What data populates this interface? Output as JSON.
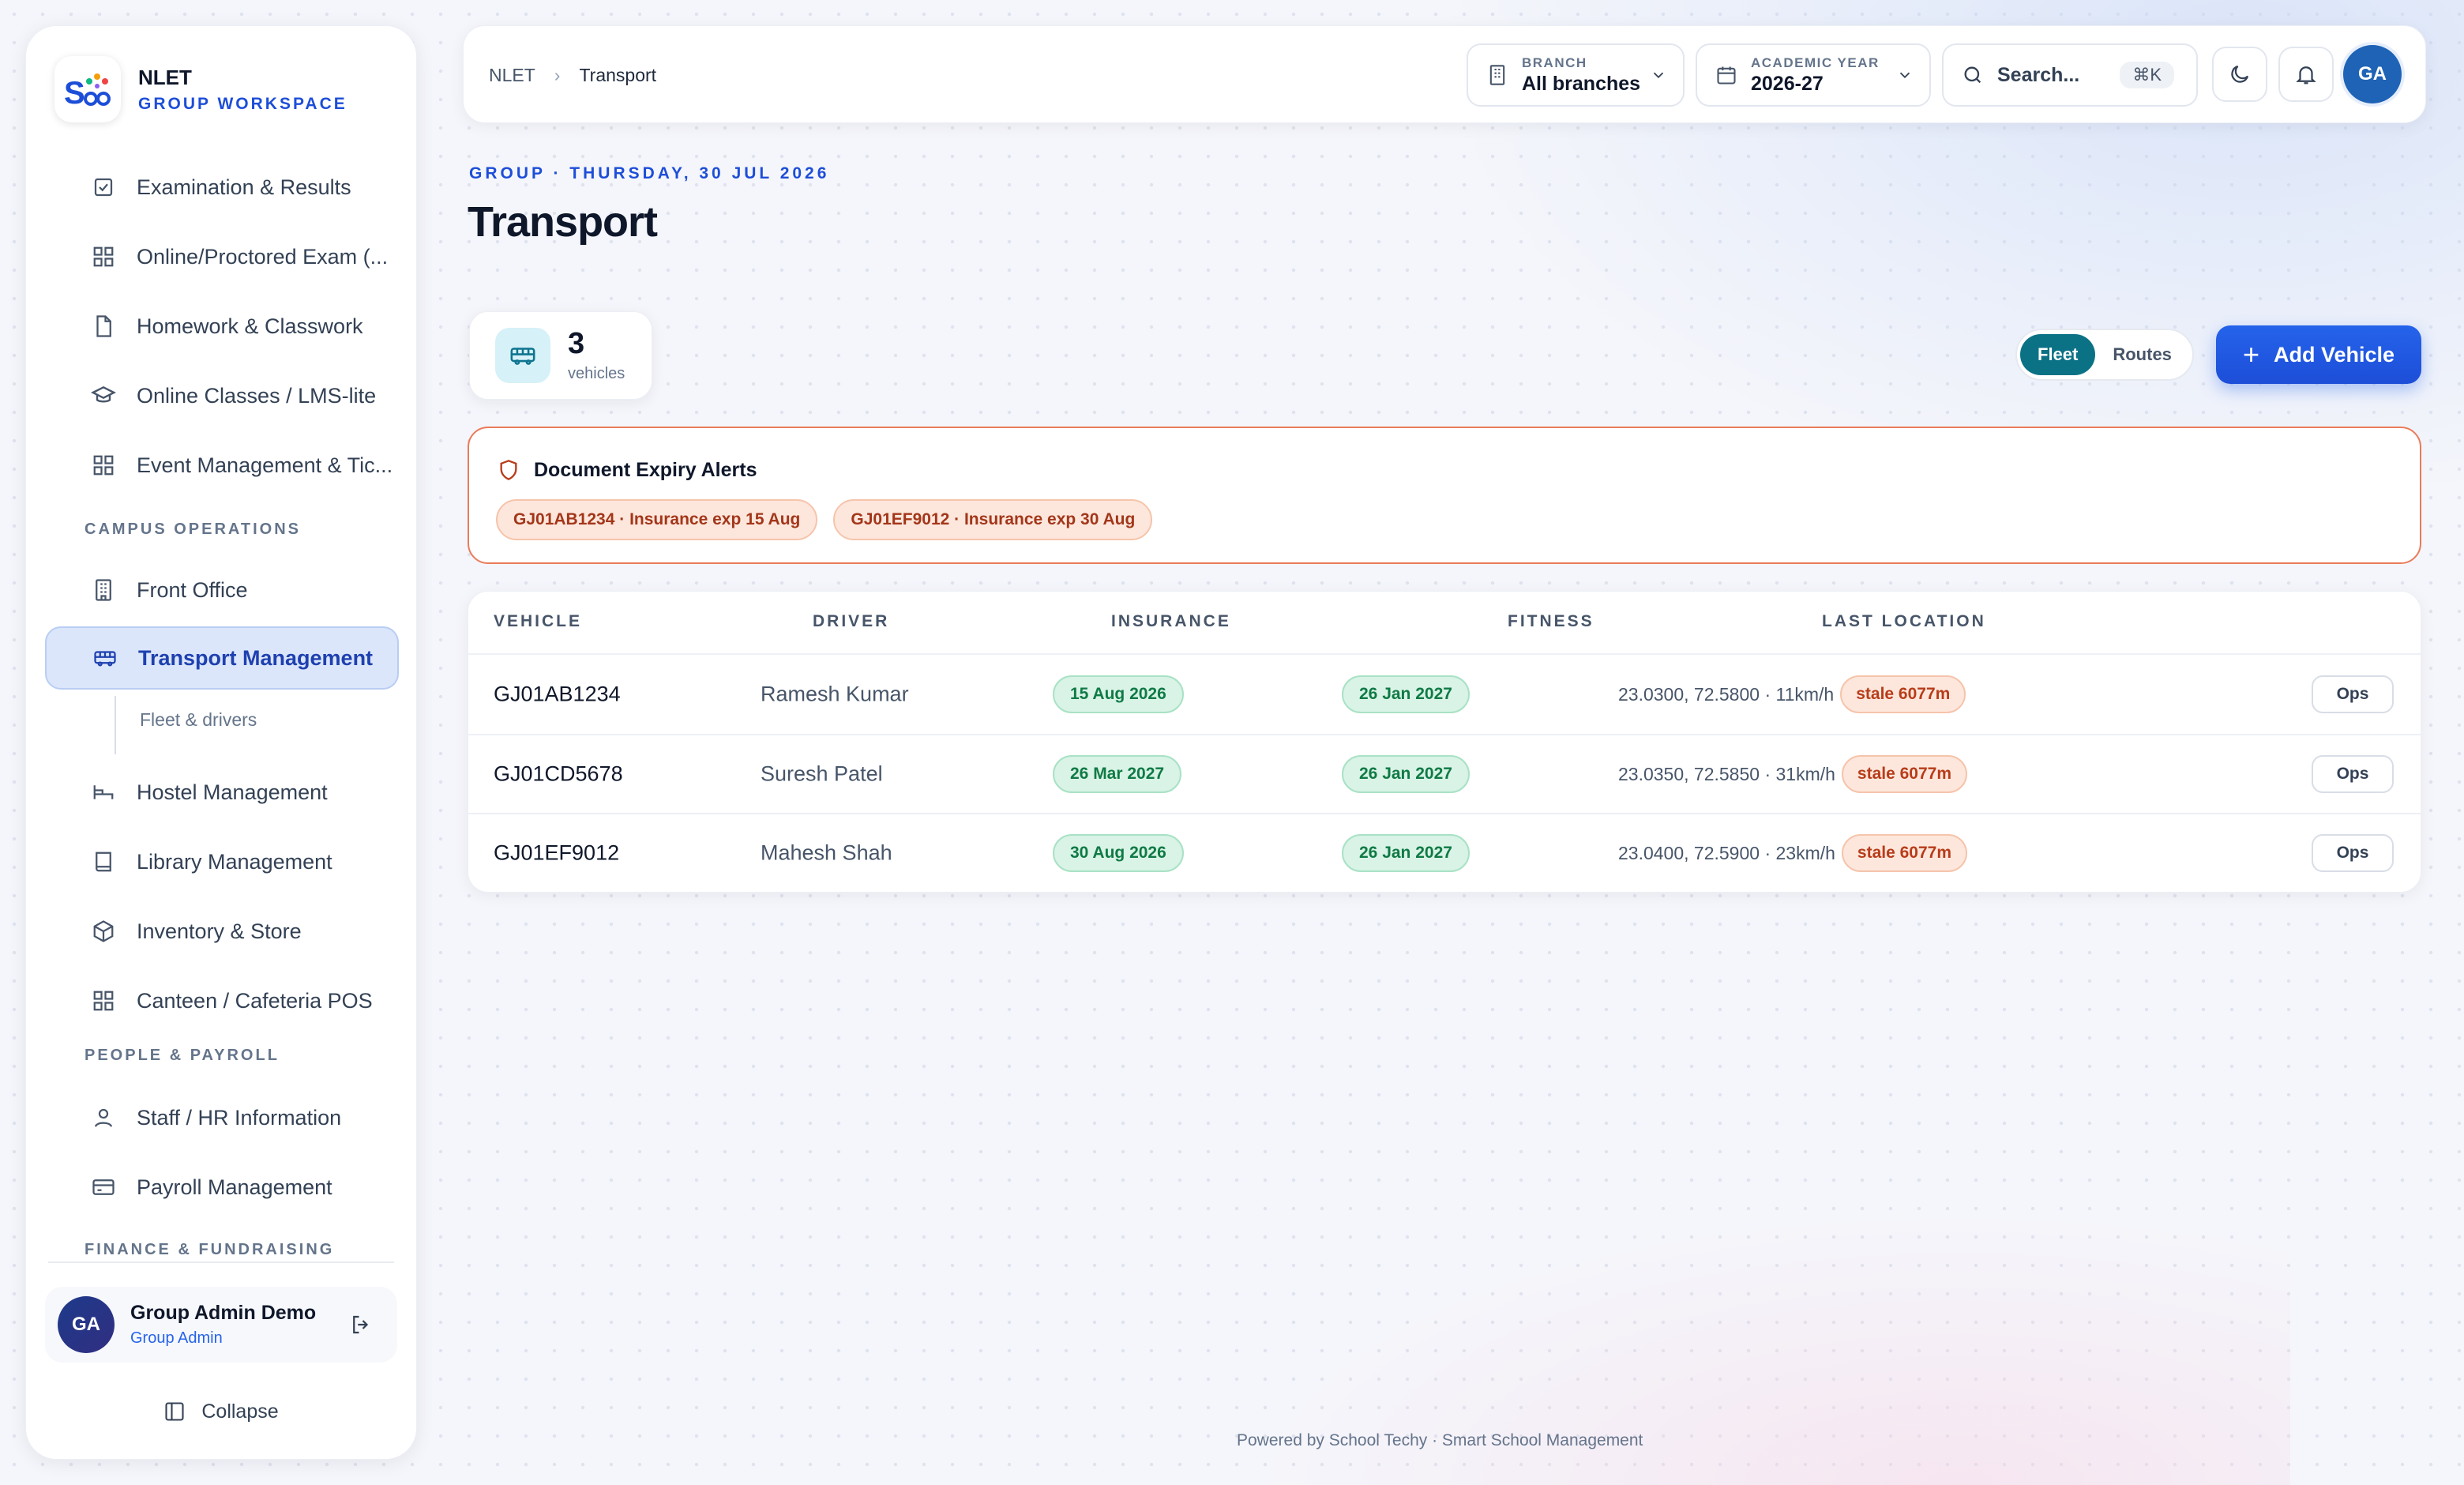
{
  "brand": {
    "name": "NLET",
    "subtitle": "GROUP WORKSPACE"
  },
  "sidebar": {
    "items": [
      {
        "label": "Examination & Results",
        "icon": "checkbox-icon"
      },
      {
        "label": "Online/Proctored Exam (...",
        "icon": "grid-icon"
      },
      {
        "label": "Homework & Classwork",
        "icon": "file-icon"
      },
      {
        "label": "Online Classes / LMS-lite",
        "icon": "graduation-cap-icon"
      },
      {
        "label": "Event Management & Tic...",
        "icon": "grid-icon"
      },
      {
        "label": "Front Office",
        "icon": "building-icon"
      },
      {
        "label": "Transport Management",
        "icon": "bus-icon",
        "active": true
      },
      {
        "label": "Hostel Management",
        "icon": "bed-icon"
      },
      {
        "label": "Library Management",
        "icon": "book-icon"
      },
      {
        "label": "Inventory & Store",
        "icon": "package-icon"
      },
      {
        "label": "Canteen / Cafeteria POS",
        "icon": "grid-icon"
      },
      {
        "label": "Staff / HR Information",
        "icon": "user-icon"
      },
      {
        "label": "Payroll Management",
        "icon": "card-icon"
      }
    ],
    "sections": {
      "campus": "CAMPUS OPERATIONS",
      "people": "PEOPLE & PAYROLL",
      "finance": "FINANCE & FUNDRAISING"
    },
    "sub_item": "Fleet & drivers",
    "user": {
      "initials": "GA",
      "name": "Group Admin Demo",
      "role": "Group Admin"
    },
    "collapse_label": "Collapse"
  },
  "topbar": {
    "breadcrumb": [
      "NLET",
      "Transport"
    ],
    "branch": {
      "label": "BRANCH",
      "value": "All branches"
    },
    "year": {
      "label": "ACADEMIC YEAR",
      "value": "2026-27"
    },
    "search": {
      "placeholder": "Search...",
      "shortcut": "⌘K"
    },
    "avatar": "GA"
  },
  "page": {
    "eyebrow": "GROUP · THURSDAY, 30 JUL 2026",
    "title": "Transport",
    "stat": {
      "value": "3",
      "unit": "vehicles"
    },
    "toggle": [
      "Fleet",
      "Routes"
    ],
    "toggle_active": "Fleet",
    "add_button": "Add Vehicle"
  },
  "alerts": {
    "title": "Document Expiry Alerts",
    "items": [
      "GJ01AB1234 · Insurance exp 15 Aug",
      "GJ01EF9012 · Insurance exp 30 Aug"
    ]
  },
  "table": {
    "headers": [
      "VEHICLE",
      "DRIVER",
      "INSURANCE",
      "FITNESS",
      "LAST LOCATION"
    ],
    "rows": [
      {
        "vehicle": "GJ01AB1234",
        "driver": "Ramesh Kumar",
        "insurance": "15 Aug 2026",
        "fitness": "26 Jan 2027",
        "location": "23.0300, 72.5800 · 11km/h",
        "stale": "stale 6077m",
        "action": "Ops"
      },
      {
        "vehicle": "GJ01CD5678",
        "driver": "Suresh Patel",
        "insurance": "26 Mar 2027",
        "fitness": "26 Jan 2027",
        "location": "23.0350, 72.5850 · 31km/h",
        "stale": "stale 6077m",
        "action": "Ops"
      },
      {
        "vehicle": "GJ01EF9012",
        "driver": "Mahesh Shah",
        "insurance": "30 Aug 2026",
        "fitness": "26 Jan 2027",
        "location": "23.0400, 72.5900 · 23km/h",
        "stale": "stale 6077m",
        "action": "Ops"
      }
    ]
  },
  "footer": "Powered by School Techy · Smart School Management",
  "colors": {
    "accent": "#1d4ed8",
    "teal": "#0b7285",
    "alert": "#ea7b5a",
    "success": "#0f7a45"
  }
}
